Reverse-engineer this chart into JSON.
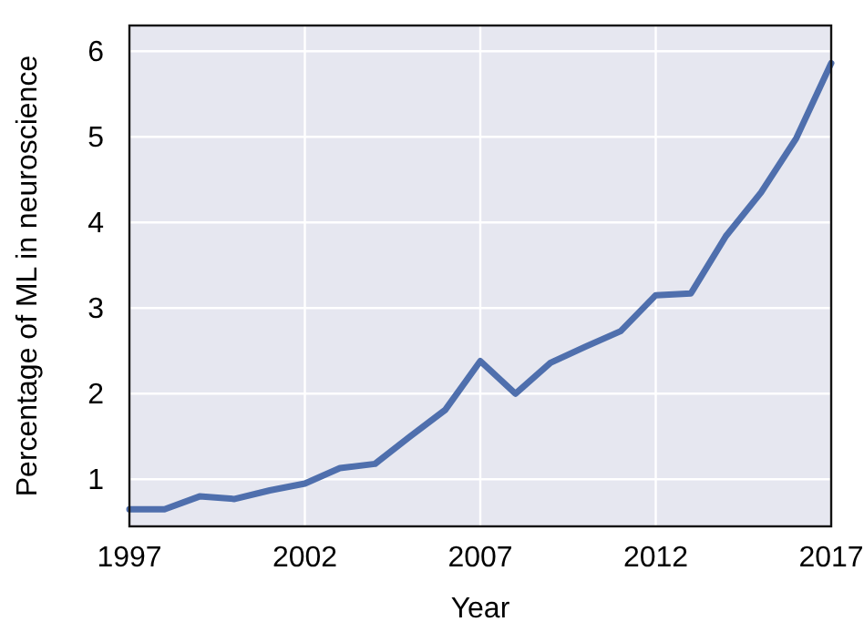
{
  "chart_data": {
    "type": "line",
    "xlabel": "Year",
    "ylabel": "Percentage of ML in neuroscience",
    "x": [
      1997,
      1998,
      1999,
      2000,
      2001,
      2002,
      2003,
      2004,
      2005,
      2006,
      2007,
      2008,
      2009,
      2010,
      2011,
      2012,
      2013,
      2014,
      2015,
      2016,
      2017
    ],
    "series": [
      {
        "color": "#4f6fad",
        "values": [
          0.65,
          0.65,
          0.8,
          0.77,
          0.87,
          0.95,
          1.13,
          1.18,
          1.5,
          1.81,
          2.38,
          2.0,
          2.36,
          2.55,
          2.73,
          3.15,
          3.17,
          3.84,
          4.35,
          4.98,
          5.86
        ]
      }
    ],
    "xlim": [
      1997,
      2017
    ],
    "xticks": [
      1997,
      2002,
      2007,
      2012,
      2017
    ],
    "ylim": [
      0.45,
      6.3
    ],
    "yticks": [
      1,
      2,
      3,
      4,
      5,
      6
    ],
    "grid": true,
    "line_style": "solid",
    "marker": "none"
  }
}
